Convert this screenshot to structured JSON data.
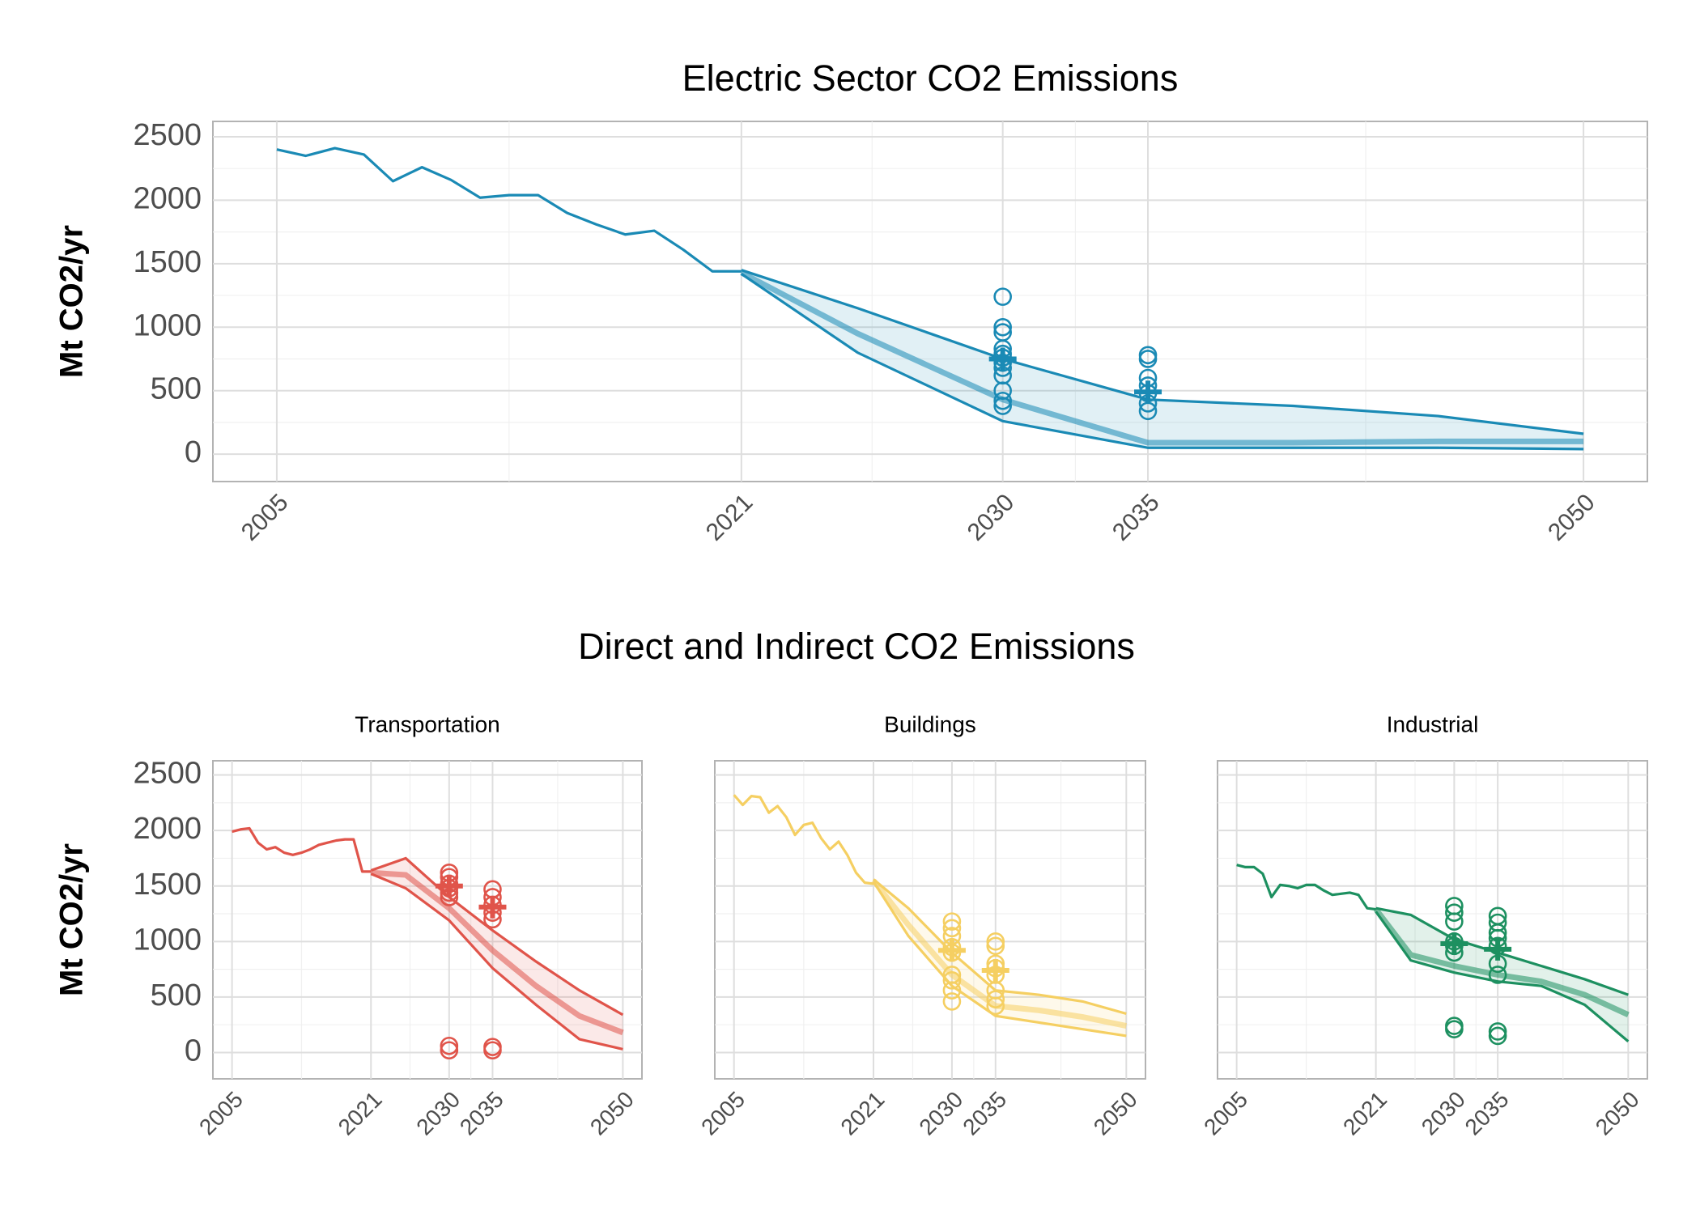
{
  "figure_title": "Direct and Indirect CO2 Emissions",
  "chart_data": [
    {
      "type": "line",
      "title": "Electric Sector CO2 Emissions",
      "ylabel": "Mt CO2/yr",
      "color": "#1a8ab5",
      "xlim": [
        2002.8,
        2052.2
      ],
      "xticks": [
        2005,
        2021,
        2030,
        2035,
        2050
      ],
      "ylim": [
        -216,
        2621
      ],
      "yticks": [
        0,
        500,
        1000,
        1500,
        2000,
        2500
      ],
      "ytick_labels": true,
      "grid": true,
      "minor_grid": true,
      "history": {
        "x": [
          2005,
          2006,
          2007,
          2008,
          2009,
          2010,
          2011,
          2012,
          2013,
          2014,
          2015,
          2016,
          2017,
          2018,
          2019,
          2020,
          2021
        ],
        "values": [
          2400,
          2350,
          2410,
          2360,
          2150,
          2260,
          2160,
          2020,
          2040,
          2040,
          1900,
          1810,
          1730,
          1760,
          1610,
          1440,
          1440
        ]
      },
      "band": {
        "x": [
          2021,
          2025,
          2030,
          2035,
          2040,
          2045,
          2050
        ],
        "upper": [
          1450,
          1150,
          750,
          430,
          380,
          300,
          160
        ],
        "lower": [
          1420,
          800,
          260,
          50,
          50,
          50,
          40
        ],
        "median": [
          1430,
          950,
          430,
          90,
          90,
          100,
          100
        ]
      },
      "points": {
        "x": [
          2030,
          2030,
          2030,
          2030,
          2030,
          2030,
          2030,
          2030,
          2030,
          2030,
          2030,
          2030,
          2035,
          2035,
          2035,
          2035,
          2035,
          2035,
          2035
        ],
        "values": [
          1240,
          1000,
          960,
          830,
          790,
          760,
          720,
          680,
          620,
          500,
          420,
          380,
          780,
          750,
          600,
          540,
          480,
          400,
          340
        ]
      },
      "means": {
        "x": [
          2030,
          2035
        ],
        "values": [
          750,
          490
        ]
      }
    },
    {
      "type": "line",
      "title": "Transportation",
      "ylabel": "Mt CO2/yr",
      "color": "#e0544a",
      "xlim": [
        2002.8,
        2052.2
      ],
      "xticks": [
        2005,
        2021,
        2030,
        2035,
        2050
      ],
      "ylim": [
        -237,
        2628
      ],
      "yticks": [
        0,
        500,
        1000,
        1500,
        2000,
        2500
      ],
      "ytick_labels": true,
      "grid": true,
      "minor_grid": true,
      "history": {
        "x": [
          2005,
          2006,
          2007,
          2008,
          2009,
          2010,
          2011,
          2012,
          2013,
          2014,
          2015,
          2016,
          2017,
          2018,
          2019,
          2020,
          2021
        ],
        "values": [
          1990,
          2010,
          2020,
          1890,
          1830,
          1850,
          1800,
          1780,
          1800,
          1830,
          1870,
          1890,
          1910,
          1920,
          1920,
          1630,
          1630
        ]
      },
      "band": {
        "x": [
          2021,
          2025,
          2030,
          2035,
          2040,
          2045,
          2050
        ],
        "upper": [
          1640,
          1750,
          1400,
          1100,
          820,
          560,
          340
        ],
        "lower": [
          1610,
          1480,
          1190,
          760,
          430,
          120,
          30
        ],
        "median": [
          1620,
          1600,
          1300,
          920,
          600,
          330,
          180
        ]
      },
      "points": {
        "x": [
          2030,
          2030,
          2030,
          2030,
          2030,
          2030,
          2030,
          2030,
          2035,
          2035,
          2035,
          2035,
          2035,
          2035,
          2035
        ],
        "values": [
          1620,
          1580,
          1520,
          1480,
          1440,
          1400,
          60,
          20,
          1470,
          1400,
          1330,
          1260,
          1200,
          50,
          20
        ]
      },
      "means": {
        "x": [
          2030,
          2035
        ],
        "values": [
          1500,
          1310
        ]
      }
    },
    {
      "type": "line",
      "title": "Buildings",
      "color": "#f5cf62",
      "xlim": [
        2002.8,
        2052.2
      ],
      "xticks": [
        2005,
        2021,
        2030,
        2035,
        2050
      ],
      "ylim": [
        -237,
        2628
      ],
      "yticks": [
        0,
        500,
        1000,
        1500,
        2000,
        2500
      ],
      "ytick_labels": false,
      "grid": true,
      "minor_grid": true,
      "history": {
        "x": [
          2005,
          2006,
          2007,
          2008,
          2009,
          2010,
          2011,
          2012,
          2013,
          2014,
          2015,
          2016,
          2017,
          2018,
          2019,
          2020,
          2021
        ],
        "values": [
          2320,
          2230,
          2310,
          2300,
          2160,
          2220,
          2120,
          1960,
          2050,
          2070,
          1930,
          1830,
          1900,
          1780,
          1620,
          1530,
          1520
        ]
      },
      "band": {
        "x": [
          2021,
          2025,
          2030,
          2035,
          2040,
          2045,
          2050
        ],
        "upper": [
          1560,
          1300,
          900,
          560,
          520,
          460,
          350
        ],
        "lower": [
          1540,
          1050,
          600,
          330,
          270,
          210,
          150
        ],
        "median": [
          1550,
          1150,
          700,
          420,
          380,
          320,
          240
        ]
      },
      "points": {
        "x": [
          2030,
          2030,
          2030,
          2030,
          2030,
          2030,
          2030,
          2030,
          2030,
          2035,
          2035,
          2035,
          2035,
          2035,
          2035,
          2035,
          2035
        ],
        "values": [
          1180,
          1120,
          1050,
          950,
          900,
          700,
          650,
          560,
          460,
          1000,
          960,
          800,
          760,
          700,
          560,
          480,
          420
        ]
      },
      "means": {
        "x": [
          2030,
          2035
        ],
        "values": [
          920,
          740
        ]
      }
    },
    {
      "type": "line",
      "title": "Industrial",
      "color": "#1d9060",
      "xlim": [
        2002.8,
        2052.2
      ],
      "xticks": [
        2005,
        2021,
        2030,
        2035,
        2050
      ],
      "ylim": [
        -237,
        2628
      ],
      "yticks": [
        0,
        500,
        1000,
        1500,
        2000,
        2500
      ],
      "ytick_labels": false,
      "grid": true,
      "minor_grid": true,
      "history": {
        "x": [
          2005,
          2006,
          2007,
          2008,
          2009,
          2010,
          2011,
          2012,
          2013,
          2014,
          2015,
          2016,
          2017,
          2018,
          2019,
          2020,
          2021
        ],
        "values": [
          1690,
          1670,
          1670,
          1610,
          1400,
          1510,
          1500,
          1480,
          1510,
          1510,
          1460,
          1420,
          1430,
          1440,
          1420,
          1300,
          1290
        ]
      },
      "band": {
        "x": [
          2021,
          2025,
          2030,
          2035,
          2040,
          2045,
          2050
        ],
        "upper": [
          1300,
          1240,
          1020,
          900,
          780,
          660,
          520
        ],
        "lower": [
          1270,
          830,
          720,
          640,
          600,
          430,
          100
        ],
        "median": [
          1290,
          880,
          780,
          700,
          640,
          520,
          340
        ]
      },
      "points": {
        "x": [
          2030,
          2030,
          2030,
          2030,
          2030,
          2030,
          2030,
          2030,
          2035,
          2035,
          2035,
          2035,
          2035,
          2035,
          2035,
          2035,
          2035
        ],
        "values": [
          1320,
          1260,
          1180,
          1000,
          960,
          900,
          240,
          210,
          1230,
          1170,
          1080,
          1030,
          960,
          800,
          700,
          190,
          150
        ]
      },
      "means": {
        "x": [
          2030,
          2035
        ],
        "values": [
          980,
          930
        ]
      }
    }
  ]
}
